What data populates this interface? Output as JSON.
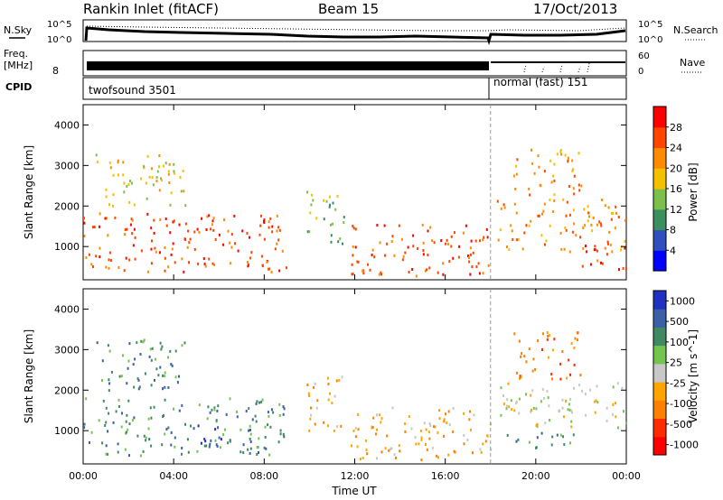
{
  "header": {
    "title": "Rankin Inlet (fitACF)",
    "beam": "Beam 15",
    "date": "17/Oct/2013"
  },
  "summary_panel": {
    "nsky_label": "N.Sky",
    "nsearch_label": "N.Search",
    "noise_ticks": [
      "10^5",
      "10^0"
    ],
    "freq_label_line1": "Freq.",
    "freq_label_line2": "[MHz]",
    "freq_tick": "8",
    "nave_label": "Nave",
    "nave_ticks": [
      "60",
      "0"
    ],
    "cpid_label": "CPID",
    "cpid_segments": [
      {
        "label": "twofsound 3501",
        "start_hour": 0,
        "end_hour": 18.0
      },
      {
        "label": "normal (fast) 151",
        "start_hour": 18.0,
        "end_hour": 24
      }
    ]
  },
  "chart_data": [
    {
      "type": "heatmap",
      "title": "Power",
      "xlabel": "",
      "ylabel": "Slant Range [km]",
      "xlim": [
        0,
        24
      ],
      "ylim": [
        180,
        4500
      ],
      "y_ticks": [
        "1000",
        "2000",
        "3000",
        "4000"
      ],
      "colorbar_label": "Power [dB]",
      "colorbar_ticks": [
        "4",
        "8",
        "12",
        "16",
        "20",
        "24",
        "28"
      ],
      "colorscale": [
        "#0000ff",
        "#2f4fbf",
        "#3a8f5f",
        "#7cc04c",
        "#f5c000",
        "#ff8c00",
        "#ff4500",
        "#ff0000"
      ],
      "regions": [
        {
          "t0": 0.0,
          "t1": 9.0,
          "r0": 400,
          "r1": 1850,
          "level": 6
        },
        {
          "t0": 0.5,
          "t1": 4.5,
          "r0": 2000,
          "r1": 3300,
          "level": 4
        },
        {
          "t0": 9.8,
          "t1": 11.5,
          "r0": 1000,
          "r1": 2400,
          "level": 3
        },
        {
          "t0": 11.8,
          "t1": 18.0,
          "r0": 300,
          "r1": 1600,
          "level": 6
        },
        {
          "t0": 18.2,
          "t1": 24.0,
          "r0": 900,
          "r1": 2200,
          "level": 5
        },
        {
          "t0": 19.0,
          "t1": 22.0,
          "r0": 2300,
          "r1": 3500,
          "level": 5
        },
        {
          "t0": 22.0,
          "t1": 24.0,
          "r0": 400,
          "r1": 1100,
          "level": 6
        }
      ]
    },
    {
      "type": "heatmap",
      "title": "Velocity",
      "xlabel": "Time UT",
      "ylabel": "Slant Range [km]",
      "xlim": [
        0,
        24
      ],
      "ylim": [
        180,
        4500
      ],
      "x_ticks": [
        "00:00",
        "04:00",
        "08:00",
        "12:00",
        "16:00",
        "20:00",
        "00:00"
      ],
      "y_ticks": [
        "1000",
        "2000",
        "3000",
        "4000"
      ],
      "colorbar_label": "Velocity [m s^-1]",
      "colorbar_ticks": [
        "1000",
        "500",
        "100",
        "25",
        "-25",
        "-100",
        "-500",
        "-1000"
      ],
      "colorscale": [
        "#2030c0",
        "#3a60a8",
        "#3f8a60",
        "#74c450",
        "#c8c8c8",
        "#ffa500",
        "#ff7f00",
        "#ff2a00",
        "#ff0000"
      ],
      "regions": [
        {
          "t0": 0.0,
          "t1": 9.0,
          "r0": 400,
          "r1": 1850,
          "level": 2
        },
        {
          "t0": 4.8,
          "t1": 6.2,
          "r0": 500,
          "r1": 1200,
          "level": 0
        },
        {
          "t0": 0.5,
          "t1": 4.5,
          "r0": 2000,
          "r1": 3300,
          "level": 2
        },
        {
          "t0": 9.8,
          "t1": 11.5,
          "r0": 1000,
          "r1": 2400,
          "level": 5
        },
        {
          "t0": 11.8,
          "t1": 18.0,
          "r0": 300,
          "r1": 1600,
          "level": 5
        },
        {
          "t0": 18.2,
          "t1": 24.0,
          "r0": 1100,
          "r1": 2200,
          "level": 4
        },
        {
          "t0": 18.5,
          "t1": 22.0,
          "r0": 600,
          "r1": 1000,
          "level": 2
        },
        {
          "t0": 19.0,
          "t1": 22.0,
          "r0": 2300,
          "r1": 3500,
          "level": 6
        }
      ]
    }
  ]
}
